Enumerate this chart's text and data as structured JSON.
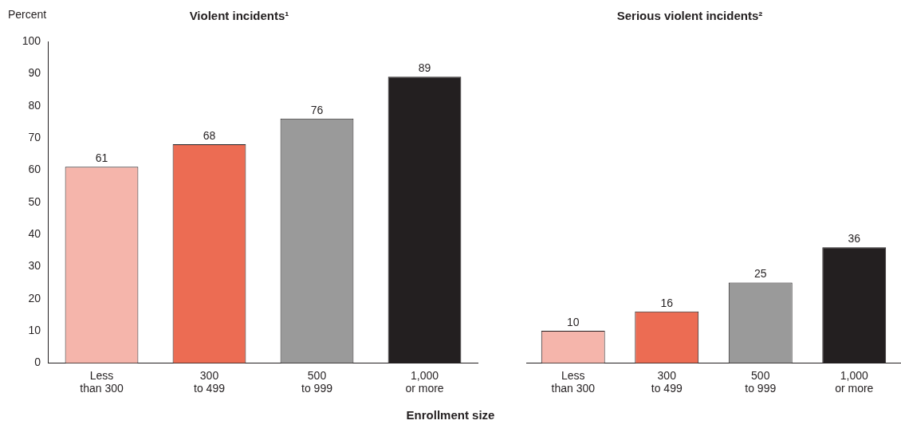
{
  "chart_data": [
    {
      "type": "bar",
      "title": "Violent incidents¹",
      "ylabel": "Percent",
      "xlabel": "Enrollment size",
      "categories": [
        "Less than 300",
        "300 to 499",
        "500 to 999",
        "1,000 or more"
      ],
      "values": [
        61,
        68,
        76,
        89
      ],
      "colors": [
        "#f5b5ab",
        "#ec6c53",
        "#9a9a9a",
        "#231f20"
      ],
      "ylim": [
        0,
        100
      ],
      "yticks": [
        0,
        10,
        20,
        30,
        40,
        50,
        60,
        70,
        80,
        90,
        100
      ],
      "data_labels": true
    },
    {
      "type": "bar",
      "title": "Serious violent incidents²",
      "categories": [
        "Less than 300",
        "300 to 499",
        "500 to 999",
        "1,000 or more"
      ],
      "values": [
        10,
        16,
        25,
        36
      ],
      "colors": [
        "#f5b5ab",
        "#ec6c53",
        "#9a9a9a",
        "#231f20"
      ],
      "ylim": [
        0,
        100
      ],
      "yticks": [
        0,
        10,
        20,
        30,
        40,
        50,
        60,
        70,
        80,
        90,
        100
      ],
      "data_labels": true,
      "tick_labels": "x"
    }
  ]
}
